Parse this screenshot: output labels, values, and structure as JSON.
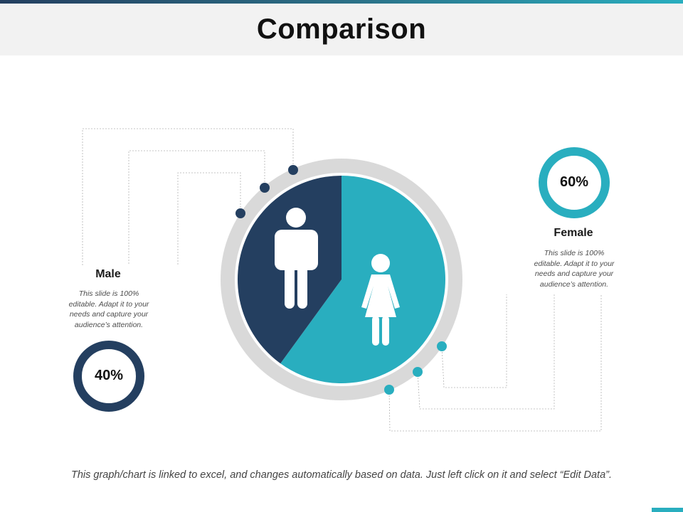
{
  "title": "Comparison",
  "colors": {
    "male": "#243f60",
    "female": "#29aebf",
    "outer_ring": "#d9d9d9",
    "connector": "#b0b0b0"
  },
  "chart_data": {
    "type": "pie",
    "title": "Comparison",
    "series": [
      {
        "label": "Male",
        "value": 40,
        "display": "40%",
        "color": "#243f60",
        "icon": "male-person-icon"
      },
      {
        "label": "Female",
        "value": 60,
        "display": "60%",
        "color": "#29aebf",
        "icon": "female-person-icon"
      }
    ]
  },
  "male": {
    "label": "Male",
    "percent": "40%",
    "desc": [
      "This slide is 100%",
      "editable. Adapt it to your",
      "needs and capture your",
      "audience’s attention."
    ]
  },
  "female": {
    "label": "Female",
    "percent": "60%",
    "desc": [
      "This slide is 100%",
      "editable. Adapt it to your",
      "needs and capture your",
      "audience’s attention."
    ]
  },
  "footer": "This graph/chart is linked to excel, and changes automatically based on data. Just left click on it and select “Edit Data”."
}
